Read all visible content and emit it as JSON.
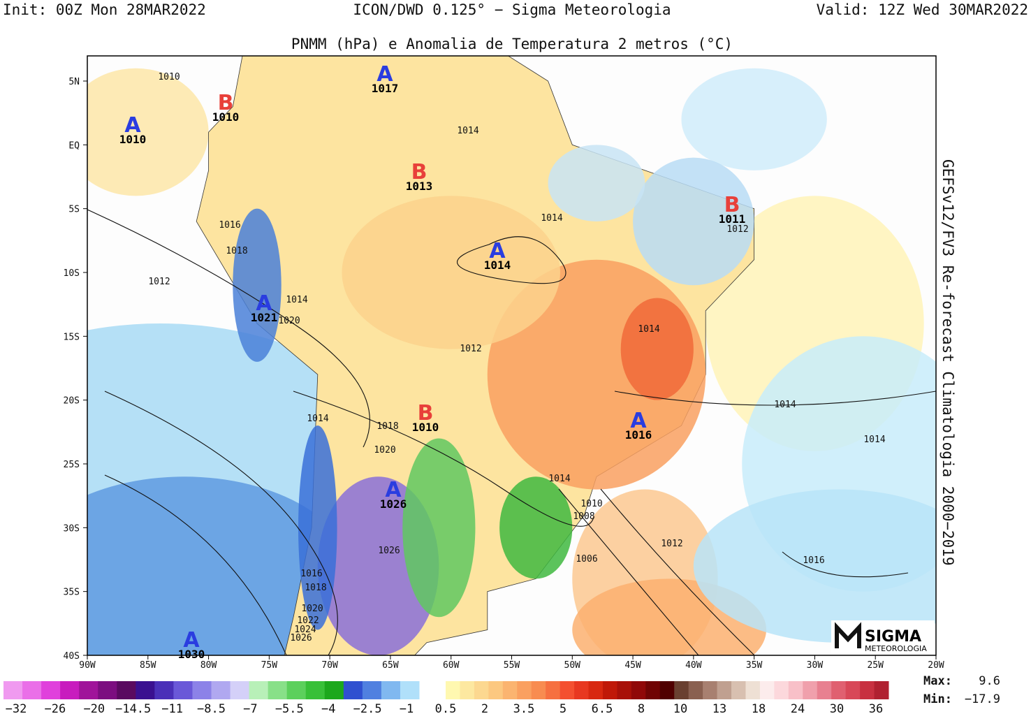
{
  "header": {
    "left": "Init: 00Z Mon 28MAR2022",
    "center": "ICON/DWD 0.125° − Sigma Meteorologia",
    "right": "Valid: 12Z Wed 30MAR2022",
    "title": "PNMM (hPa) e Anomalia de Temperatura 2 metros (°C)"
  },
  "side_note": "GEFSv12/FV3 Re-forecast Climatologia 2000−2019",
  "lat_ticks": [
    "5N",
    "EQ",
    "5S",
    "10S",
    "15S",
    "20S",
    "25S",
    "30S",
    "35S",
    "40S"
  ],
  "lon_ticks": [
    "90W",
    "85W",
    "80W",
    "75W",
    "70W",
    "65W",
    "60W",
    "55W",
    "50W",
    "45W",
    "40W",
    "35W",
    "30W",
    "25W",
    "20W"
  ],
  "centers": [
    {
      "letter": "A",
      "value": "1010",
      "color": "#2a3de0"
    },
    {
      "letter": "B",
      "value": "1010",
      "color": "#e8403a"
    },
    {
      "letter": "A",
      "value": "1017",
      "color": "#2a3de0"
    },
    {
      "letter": "B",
      "value": "1013",
      "color": "#e8403a"
    },
    {
      "letter": "B",
      "value": "1011",
      "color": "#e8403a"
    },
    {
      "letter": "A",
      "value": "1014",
      "color": "#2a3de0"
    },
    {
      "letter": "A",
      "value": "1021",
      "color": "#2a3de0"
    },
    {
      "letter": "B",
      "value": "1010",
      "color": "#e8403a"
    },
    {
      "letter": "A",
      "value": "1016",
      "color": "#2a3de0"
    },
    {
      "letter": "A",
      "value": "1026",
      "color": "#2a3de0"
    },
    {
      "letter": "A",
      "value": "1030",
      "color": "#2a3de0"
    }
  ],
  "isobar_labels": [
    "1010",
    "1014",
    "1012",
    "1014",
    "1016",
    "1018",
    "1012",
    "1014",
    "1020",
    "1014",
    "1012",
    "1014",
    "1014",
    "1018",
    "1020",
    "1014",
    "1014",
    "1010",
    "1008",
    "1012",
    "1026",
    "1006",
    "1016",
    "1016",
    "1018",
    "1020",
    "1022",
    "1024",
    "1026"
  ],
  "colorbar": {
    "cold_labels": [
      "−32",
      "−26",
      "−20",
      "−14.5",
      "−11",
      "−8.5",
      "−7",
      "−5.5",
      "−4",
      "−2.5",
      "−1"
    ],
    "warm_labels": [
      "0.5",
      "2",
      "3.5",
      "5",
      "6.5",
      "8",
      "10",
      "13",
      "18",
      "24",
      "30",
      "36"
    ],
    "cold_colors": [
      "#f09af0",
      "#ea6fe8",
      "#e040dc",
      "#c81cbe",
      "#a0149a",
      "#7c0e80",
      "#5a0a60",
      "#3a1090",
      "#4a30b8",
      "#6a58d8",
      "#8c82e8",
      "#b0a8f0",
      "#d4d0f8",
      "#b8f0b8",
      "#88e088",
      "#5cd05c",
      "#38c038",
      "#1ca81c",
      "#3050d0",
      "#5080e0",
      "#80b8f0",
      "#b0e0fa"
    ],
    "warm_colors": [
      "#fff8b0",
      "#fde8a0",
      "#fcd890",
      "#fcc880",
      "#fbb470",
      "#faa060",
      "#f88c50",
      "#f67040",
      "#f45030",
      "#e83820",
      "#d82810",
      "#c01808",
      "#a81008",
      "#900808",
      "#700404",
      "#500000",
      "#6a4030",
      "#8a6050",
      "#a88070",
      "#c0a090",
      "#d8c0b0",
      "#eee0d4",
      "#fcecec",
      "#fcd8dc",
      "#f8c0c8",
      "#f0a0ac",
      "#e88090",
      "#e06070",
      "#d84858",
      "#c83040",
      "#b02030"
    ],
    "max_label": "Max:",
    "max_value": "9.6",
    "min_label": "Min:",
    "min_value": "−17.9"
  },
  "logo": {
    "name": "SIGMA",
    "sub": "METEOROLOGIA"
  }
}
